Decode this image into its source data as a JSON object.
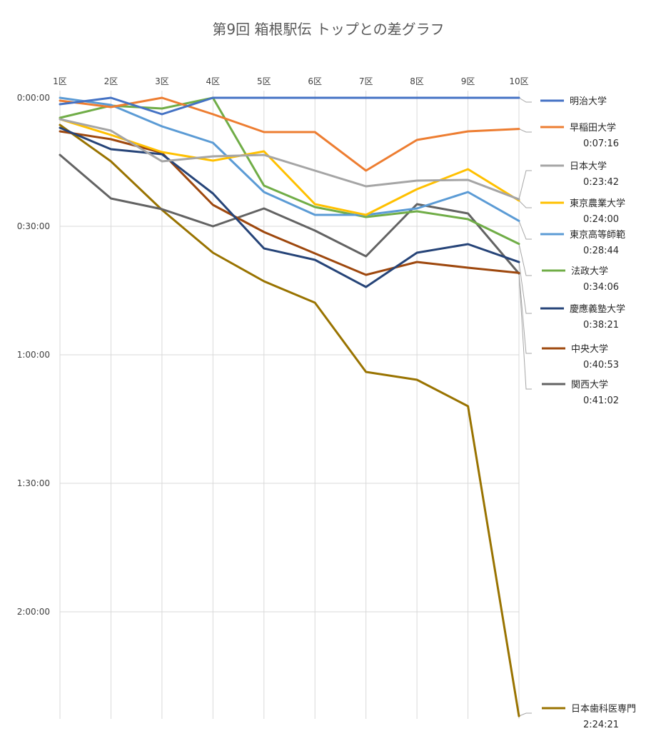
{
  "chart_data": {
    "type": "line",
    "title": "第9回 箱根駅伝 トップとの差グラフ",
    "categories": [
      "1区",
      "2区",
      "3区",
      "4区",
      "5区",
      "6区",
      "7区",
      "8区",
      "9区",
      "10区"
    ],
    "y_ticks": [
      "0:00:00",
      "0:30:00",
      "1:00:00",
      "1:30:00",
      "2:00:00"
    ],
    "y_tick_seconds": [
      0,
      1800,
      3600,
      5400,
      7200
    ],
    "ylim_seconds": [
      0,
      8700
    ],
    "y_inverted": true,
    "grid": true,
    "legend_position": "right",
    "series": [
      {
        "name": "明治大学",
        "value_label": "",
        "color": "#4472C4",
        "values": [
          90,
          0,
          230,
          0,
          0,
          0,
          0,
          0,
          0,
          0
        ]
      },
      {
        "name": "早稲田大学",
        "value_label": "0:07:16",
        "color": "#ED7D31",
        "values": [
          40,
          130,
          0,
          230,
          480,
          480,
          1020,
          590,
          470,
          436
        ]
      },
      {
        "name": "日本大学",
        "value_label": "0:23:42",
        "color": "#A5A5A5",
        "values": [
          300,
          460,
          890,
          820,
          800,
          1020,
          1240,
          1160,
          1150,
          1422
        ]
      },
      {
        "name": "東京農業大学",
        "value_label": "0:24:00",
        "color": "#FFC000",
        "values": [
          300,
          520,
          760,
          880,
          750,
          1490,
          1640,
          1280,
          1000,
          1440
        ]
      },
      {
        "name": "東京高等師範",
        "value_label": "0:28:44",
        "color": "#5B9BD5",
        "values": [
          0,
          100,
          400,
          630,
          1320,
          1640,
          1640,
          1550,
          1320,
          1724
        ]
      },
      {
        "name": "法政大学",
        "value_label": "0:34:06",
        "color": "#70AD47",
        "values": [
          280,
          110,
          150,
          0,
          1230,
          1530,
          1670,
          1590,
          1700,
          2046
        ]
      },
      {
        "name": "慶應義塾大学",
        "value_label": "0:38:21",
        "color": "#264478",
        "values": [
          420,
          720,
          790,
          1340,
          2110,
          2270,
          2650,
          2170,
          2050,
          2301
        ]
      },
      {
        "name": "中央大学",
        "value_label": "0:40:53",
        "color": "#9E480E",
        "values": [
          470,
          580,
          770,
          1500,
          1880,
          2180,
          2480,
          2300,
          2380,
          2453
        ]
      },
      {
        "name": "関西大学",
        "value_label": "0:41:02",
        "color": "#636363",
        "values": [
          800,
          1410,
          1560,
          1800,
          1550,
          1860,
          2220,
          1490,
          1620,
          2462
        ]
      },
      {
        "name": "日本歯科医専門",
        "value_label": "2:24:21",
        "color": "#997300",
        "values": [
          380,
          890,
          1570,
          2170,
          2570,
          2870,
          3840,
          3950,
          4320,
          8661
        ]
      }
    ]
  }
}
